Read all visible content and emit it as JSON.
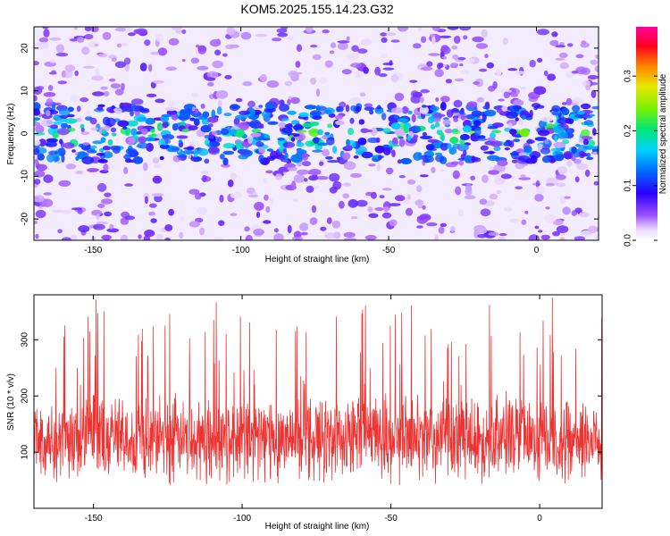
{
  "title": "KOM5.2025.155.14.23.G32",
  "chart_data": [
    {
      "type": "heatmap",
      "xlabel": "Height of straight line (km)",
      "ylabel": "Frequency (Hz)",
      "xlim": [
        -170,
        21
      ],
      "ylim": [
        -25,
        25
      ],
      "xticks": [
        -150,
        -100,
        -50,
        0
      ],
      "yticks": [
        -20,
        -10,
        0,
        10,
        20
      ],
      "colorbar": {
        "label": "Normalized spectral amplitude",
        "range": [
          0.0,
          0.39
        ],
        "ticks": [
          0.0,
          0.1,
          0.2,
          0.3
        ],
        "colormap": "rainbow (white-purple-blue-cyan-green-yellow-red-magenta)"
      },
      "description_band": {
        "center_hz": 0,
        "halfwidth_hz": 6
      },
      "grid": false,
      "legend": "none"
    },
    {
      "type": "line",
      "xlabel": "Height of straight line (km)",
      "ylabel": "SNR (10 * v/v)",
      "xlim": [
        -170,
        21
      ],
      "ylim": [
        0,
        380
      ],
      "xticks": [
        -150,
        -100,
        -50,
        0
      ],
      "yticks": [
        100,
        200,
        300
      ],
      "series": [
        {
          "color": "#ee3333",
          "mean": 125,
          "spread": 55,
          "max": 378,
          "min": 5
        }
      ],
      "grid": false,
      "legend": "none"
    }
  ],
  "colors": {
    "line": "#ee3333",
    "axis": "#000000"
  }
}
